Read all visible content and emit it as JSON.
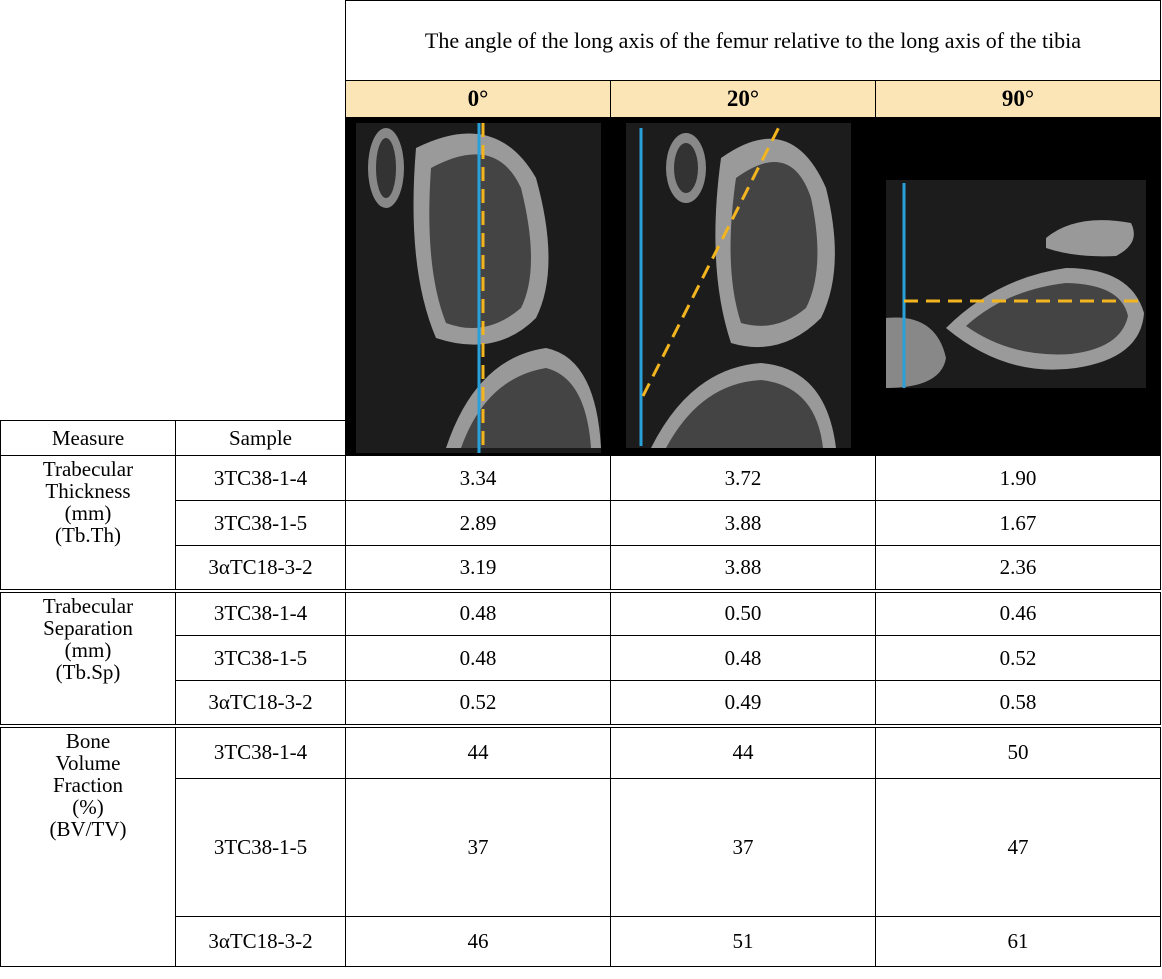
{
  "header": {
    "title": "The angle of the long axis of the femur relative to the long axis of the tibia",
    "angles": [
      "0°",
      "20°",
      "90°"
    ]
  },
  "table": {
    "columns": [
      "Measure",
      "Sample"
    ],
    "groups": [
      {
        "label": [
          "Trabecular",
          "Thickness",
          "(mm)"
        ],
        "abbreviation": "(Tb.Th)",
        "rows": [
          {
            "sample": "3TC38-1-4",
            "values": [
              "3.34",
              "3.72",
              "1.90"
            ]
          },
          {
            "sample": "3TC38-1-5",
            "values": [
              "2.89",
              "3.88",
              "1.67"
            ]
          },
          {
            "sample": "3αTC18-3-2",
            "values": [
              "3.19",
              "3.88",
              "2.36"
            ]
          }
        ]
      },
      {
        "label": [
          "Trabecular",
          "Separation",
          "(mm)"
        ],
        "abbreviation": "(Tb.Sp)",
        "rows": [
          {
            "sample": "3TC38-1-4",
            "values": [
              "0.48",
              "0.50",
              "0.46"
            ]
          },
          {
            "sample": "3TC38-1-5",
            "values": [
              "0.48",
              "0.48",
              "0.52"
            ]
          },
          {
            "sample": "3αTC18-3-2",
            "values": [
              "0.52",
              "0.49",
              "0.58"
            ]
          }
        ]
      },
      {
        "label": [
          "Bone",
          "Volume",
          "Fraction",
          "(%)"
        ],
        "abbreviation": "(BV/TV)",
        "rows": [
          {
            "sample": "3TC38-1-4",
            "values": [
              "44",
              "44",
              "50"
            ]
          },
          {
            "sample": "3TC38-1-5",
            "values": [
              "37",
              "37",
              "47"
            ]
          },
          {
            "sample": "3αTC18-3-2",
            "values": [
              "46",
              "51",
              "61"
            ]
          }
        ]
      }
    ]
  }
}
